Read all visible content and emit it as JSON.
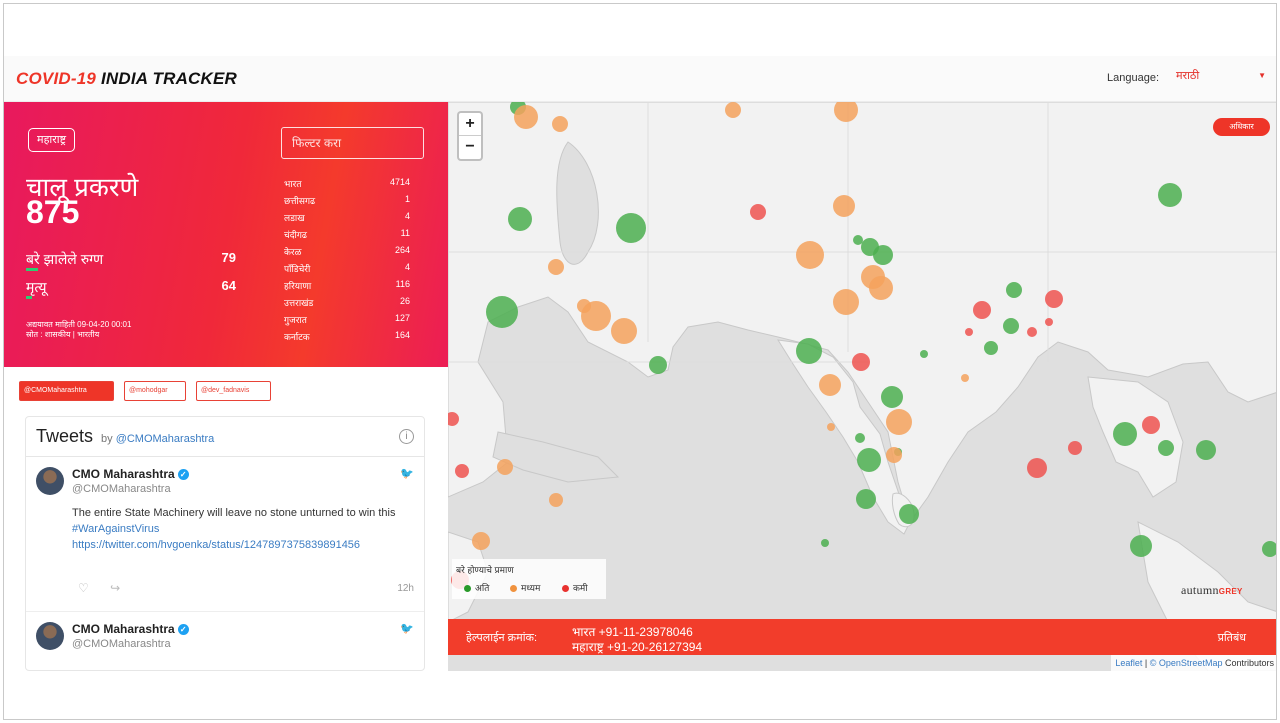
{
  "header": {
    "brand_part1": "COVID-19",
    "brand_part2": "INDIA TRACKER",
    "language_label": "Language:",
    "language_value": "मराठी"
  },
  "stats": {
    "region_chip": "महाराष्ट्र",
    "active_label": "चालू प्रकरणे",
    "active_value": "875",
    "recovered_label": "बरे झालेले रुग्ण",
    "recovered_value": "79",
    "deaths_label": "मृत्यू",
    "deaths_value": "64",
    "updated_line": "अद्ययावत माहिती 09-04-20 00:01",
    "source_line": "स्रोत : शासकीय | भारतीय",
    "filter_placeholder": "फिल्टर करा",
    "states": [
      {
        "name": "भारत",
        "count": "4714"
      },
      {
        "name": "छत्तीसगढ",
        "count": "1"
      },
      {
        "name": "लडाख",
        "count": "4"
      },
      {
        "name": "चंदीगढ",
        "count": "11"
      },
      {
        "name": "केरळ",
        "count": "264"
      },
      {
        "name": "पाँडिचेरी",
        "count": "4"
      },
      {
        "name": "हरियाणा",
        "count": "116"
      },
      {
        "name": "उत्तराखंड",
        "count": "26"
      },
      {
        "name": "गुजरात",
        "count": "127"
      },
      {
        "name": "कर्नाटक",
        "count": "164"
      }
    ]
  },
  "tags": [
    "@CMOMaharashtra",
    "@mohodgar",
    "@dev_fadnavis"
  ],
  "tweets": {
    "title": "Tweets",
    "by": "by",
    "handle": "@CMOMaharashtra",
    "items": [
      {
        "name": "CMO Maharashtra",
        "handle": "@CMOMaharashtra",
        "text": "The entire State Machinery will leave no stone unturned to win this",
        "hashtag": "#WarAgainstVirus",
        "link": "https://twitter.com/hvgoenka/status/1247897375839891456",
        "time": "12h"
      },
      {
        "name": "CMO Maharashtra",
        "handle": "@CMOMaharashtra"
      }
    ]
  },
  "map": {
    "chip": "अधिकार",
    "legend_title": "बरे होण्याचे प्रमाण",
    "legend_items": [
      {
        "label": "अति",
        "color": "#2a9a2a"
      },
      {
        "label": "मध्यम",
        "color": "#f0923e"
      },
      {
        "label": "कमी",
        "color": "#e8322f"
      }
    ],
    "colors": {
      "high": "#4caf50",
      "medium": "#f5a25d",
      "low": "#ef5350"
    },
    "helpline_label": "हेल्पलाईन क्रमांक:",
    "helpline_india": "भारत +91-11-23978046",
    "helpline_mh": "महाराष्ट्र +91-20-26127394",
    "helpline_right": "प्रतिबंध",
    "brand_main": "autumn",
    "brand_sub": "GREY",
    "attribution_leaflet": "Leaflet",
    "attribution_sep": "|",
    "attribution_osm": "© OpenStreetMap",
    "attribution_tail": "Contributors"
  }
}
